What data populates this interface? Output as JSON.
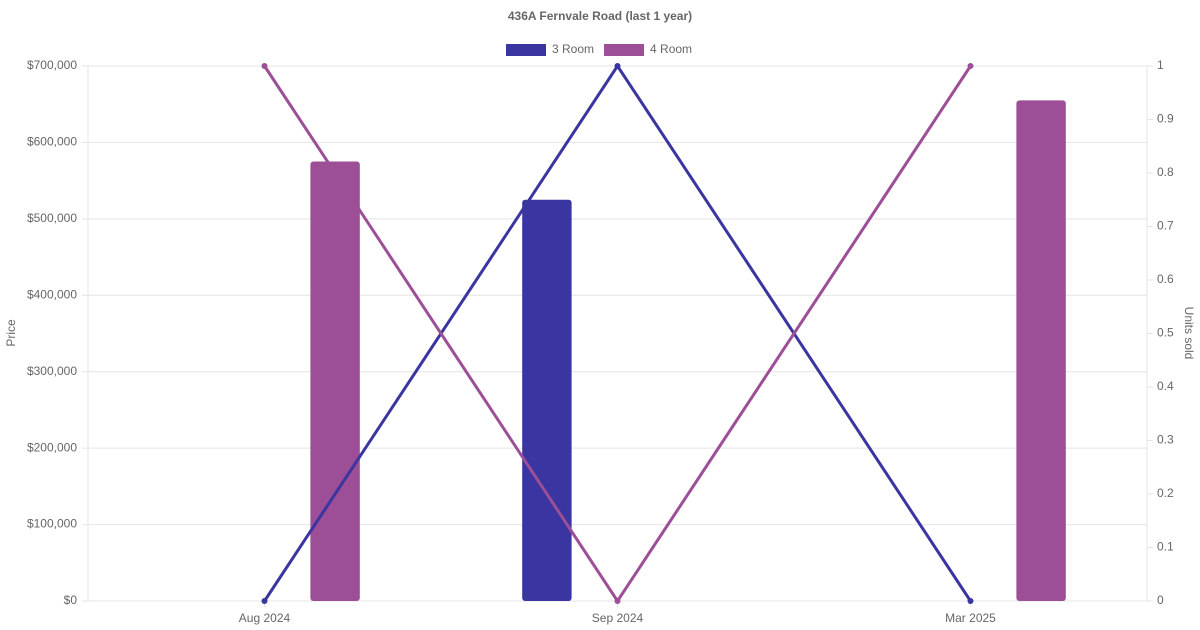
{
  "chart_data": {
    "type": "combo",
    "title": "436A Fernvale Road (last 1 year)",
    "categories": [
      "Aug 2024",
      "Sep 2024",
      "Mar 2025"
    ],
    "series": [
      {
        "name": "3 Room",
        "color": "#3a35a0",
        "values": [
          null,
          525000,
          null
        ],
        "units": [
          0,
          1,
          0
        ]
      },
      {
        "name": "4 Room",
        "color": "#9c4f96",
        "values": [
          575000,
          null,
          655000
        ],
        "units": [
          1,
          0,
          1
        ]
      }
    ],
    "ylabel": "Price",
    "y2label": "Units sold",
    "ylim": [
      0,
      700000
    ],
    "yticks": [
      {
        "value": 0,
        "label": "$0"
      },
      {
        "value": 100000,
        "label": "$100,000"
      },
      {
        "value": 200000,
        "label": "$200,000"
      },
      {
        "value": 300000,
        "label": "$300,000"
      },
      {
        "value": 400000,
        "label": "$400,000"
      },
      {
        "value": 500000,
        "label": "$500,000"
      },
      {
        "value": 600000,
        "label": "$600,000"
      },
      {
        "value": 700000,
        "label": "$700,000"
      }
    ],
    "y2lim": [
      0,
      1
    ],
    "y2ticks": [
      0,
      0.1,
      0.2,
      0.3,
      0.4,
      0.5,
      0.6,
      0.7,
      0.8,
      0.9,
      1
    ],
    "grid": true
  }
}
